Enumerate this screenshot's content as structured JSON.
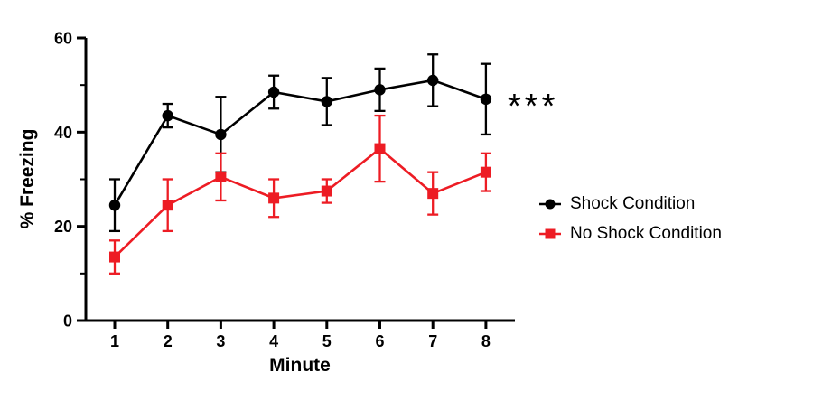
{
  "chart_data": {
    "type": "line",
    "title": "",
    "xlabel": "Minute",
    "ylabel": "% Freezing",
    "annotation": "***",
    "x": [
      1,
      2,
      3,
      4,
      5,
      6,
      7,
      8
    ],
    "ylim": [
      0,
      60
    ],
    "yticks": [
      0,
      20,
      40,
      60
    ],
    "yticks_minor": [
      10,
      30,
      50
    ],
    "grid": false,
    "legend_position": "right-center",
    "series": [
      {
        "name": "Shock Condition",
        "color": "#000000",
        "marker": "circle",
        "values": [
          24.5,
          43.5,
          39.5,
          48.5,
          46.5,
          49,
          51,
          47
        ],
        "errors": [
          5.5,
          2.5,
          8,
          3.5,
          5,
          4.5,
          5.5,
          7.5
        ]
      },
      {
        "name": "No Shock Condition",
        "color": "#ed1c24",
        "marker": "square",
        "values": [
          13.5,
          24.5,
          30.5,
          26,
          27.5,
          36.5,
          27,
          31.5
        ],
        "errors": [
          3.5,
          5.5,
          5,
          4,
          2.5,
          7,
          4.5,
          4
        ]
      }
    ]
  }
}
